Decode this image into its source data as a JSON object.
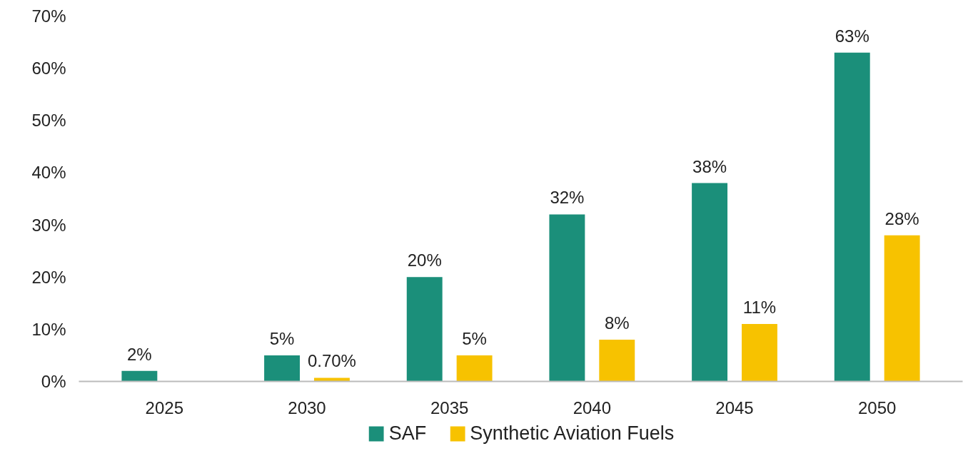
{
  "chart_data": {
    "type": "bar",
    "categories": [
      "2025",
      "2030",
      "2035",
      "2040",
      "2045",
      "2050"
    ],
    "series": [
      {
        "name": "SAF",
        "color": "#1b8f7a",
        "values": [
          2,
          5,
          20,
          32,
          38,
          63
        ],
        "value_labels": [
          "2%",
          "5%",
          "20%",
          "32%",
          "38%",
          "63%"
        ]
      },
      {
        "name": "Synthetic Aviation Fuels",
        "color": "#f7c200",
        "values": [
          null,
          0.7,
          5,
          8,
          11,
          28
        ],
        "value_labels": [
          null,
          "0.70%",
          "5%",
          "8%",
          "11%",
          "28%"
        ]
      }
    ],
    "ylim": [
      0,
      70
    ],
    "yticks": [
      {
        "value": 0,
        "label": "0%"
      },
      {
        "value": 10,
        "label": "10%"
      },
      {
        "value": 20,
        "label": "20%"
      },
      {
        "value": 30,
        "label": "30%"
      },
      {
        "value": 40,
        "label": "40%"
      },
      {
        "value": 50,
        "label": "50%"
      },
      {
        "value": 60,
        "label": "60%"
      },
      {
        "value": 70,
        "label": "70%"
      }
    ],
    "grid": false,
    "legend": "bottom"
  }
}
